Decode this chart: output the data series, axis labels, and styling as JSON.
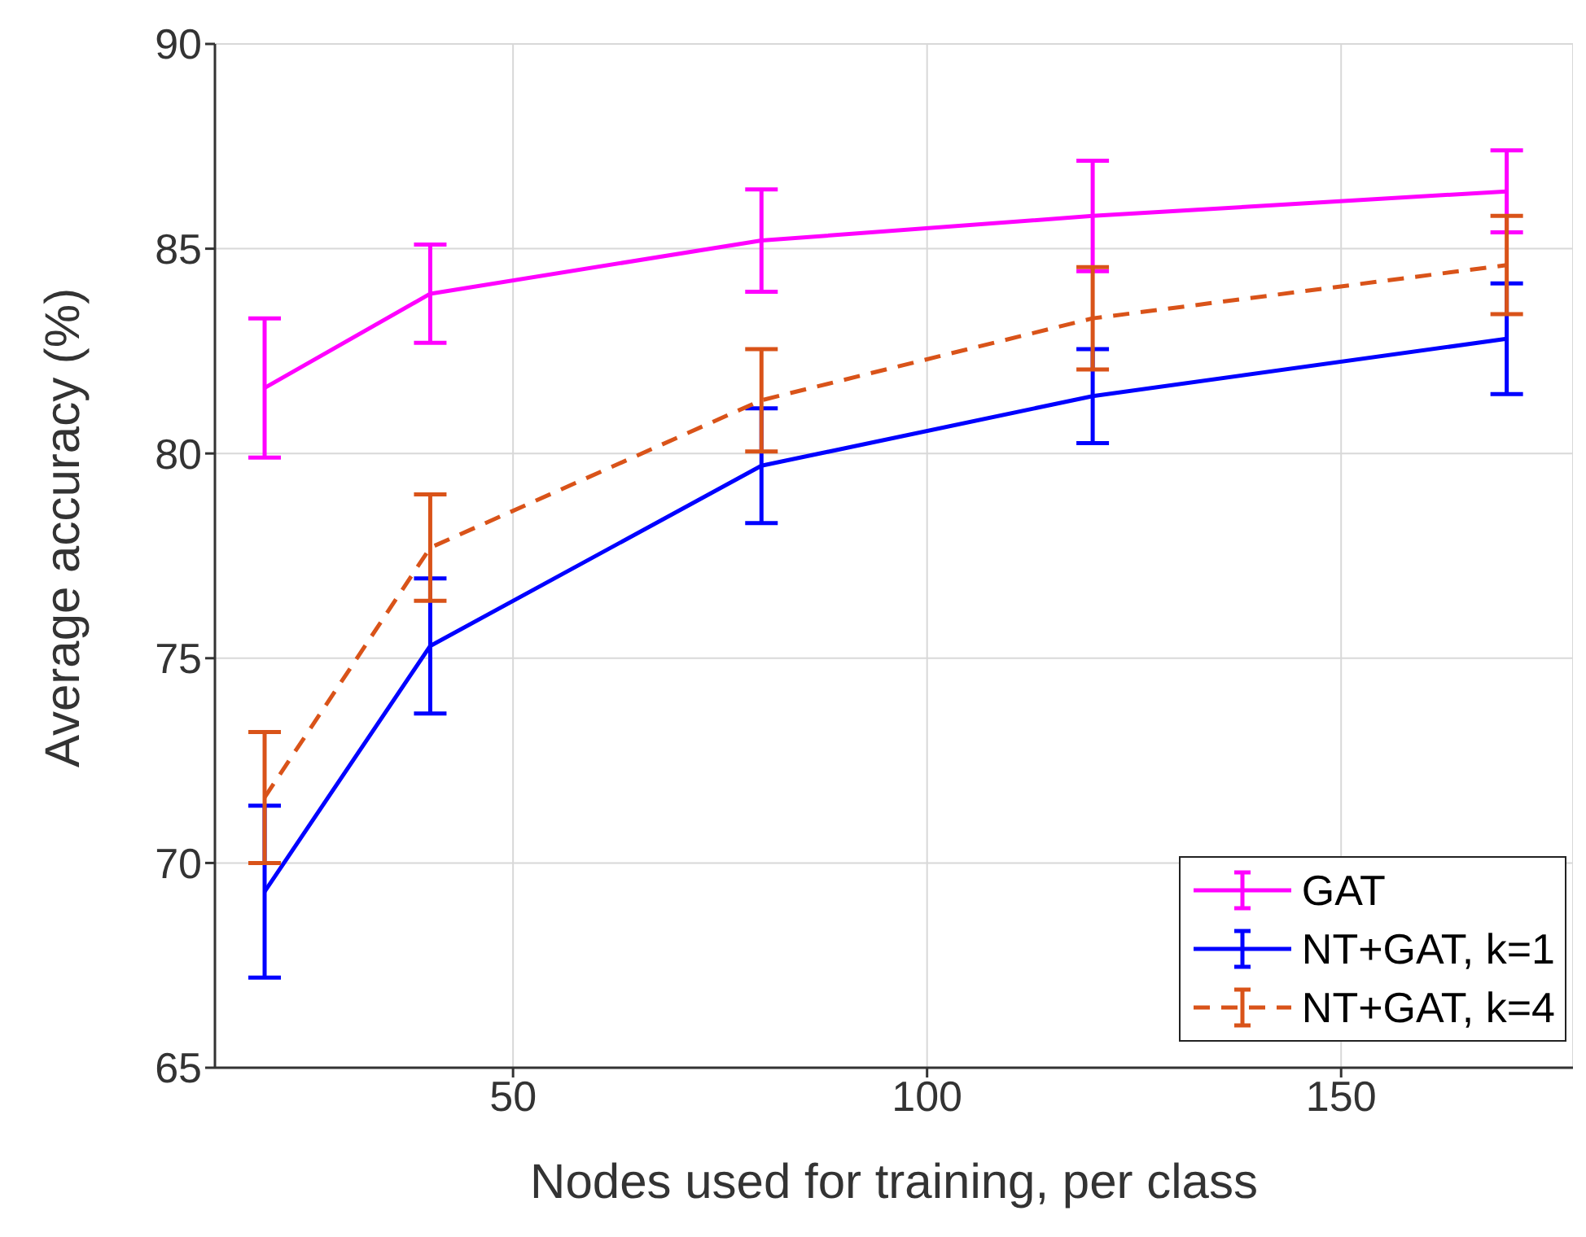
{
  "chart_data": {
    "type": "line",
    "xlabel": "Nodes used for training, per class",
    "ylabel": "Average accuracy (%)",
    "x": [
      20,
      40,
      80,
      120,
      170
    ],
    "series": [
      {
        "name": "GAT",
        "color": "#ff00ff",
        "values": [
          81.6,
          83.9,
          85.2,
          85.8,
          86.4
        ],
        "errors": [
          1.7,
          1.2,
          1.25,
          1.35,
          1.0
        ],
        "line_style": "solid"
      },
      {
        "name": "NT+GAT, k=1",
        "color": "#0000ff",
        "values": [
          69.3,
          75.3,
          79.7,
          81.4,
          82.8
        ],
        "errors": [
          2.1,
          1.65,
          1.4,
          1.15,
          1.35
        ],
        "line_style": "solid"
      },
      {
        "name": "NT+GAT, k=4",
        "color": "#d95319",
        "values": [
          71.6,
          77.7,
          81.3,
          83.3,
          84.6
        ],
        "errors": [
          1.6,
          1.3,
          1.25,
          1.25,
          1.2
        ],
        "line_style": "dashed"
      }
    ],
    "xlim": [
      14,
      178
    ],
    "xticks": [
      50,
      100,
      150
    ],
    "ylim": [
      65,
      90
    ],
    "yticks": [
      65,
      70,
      75,
      80,
      85,
      90
    ],
    "grid": true,
    "legend": "bottom right",
    "marker": "none"
  }
}
